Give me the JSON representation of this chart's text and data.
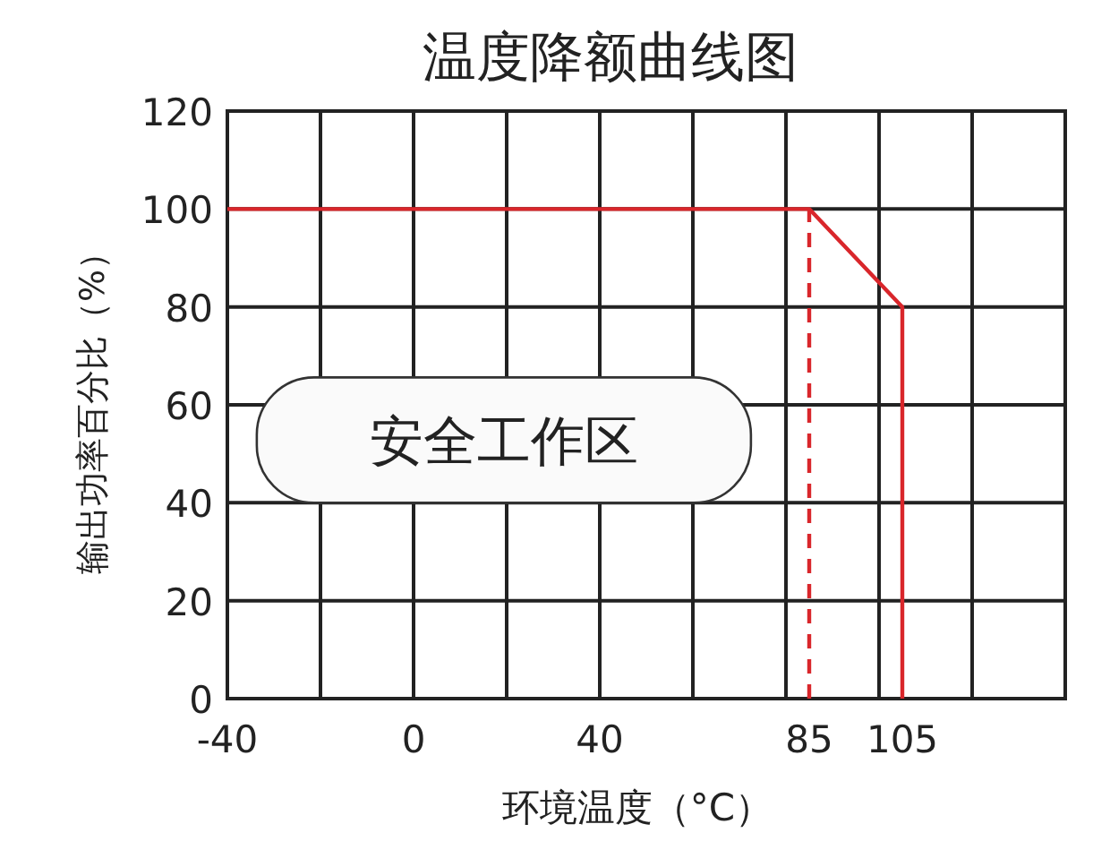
{
  "chart_data": {
    "type": "line",
    "title": "温度降额曲线图",
    "xlabel": "环境温度（°C）",
    "ylabel": "输出功率百分比（%）",
    "xlim": [
      -40,
      140
    ],
    "ylim": [
      0,
      120
    ],
    "xticks": [
      -40,
      {
        "value": -20,
        "label": null
      },
      0,
      {
        "value": 20,
        "label": null
      },
      40,
      {
        "value": 60,
        "label": null
      },
      {
        "value": 80,
        "label": null
      },
      85,
      {
        "value": 100,
        "label": null
      },
      105,
      {
        "value": 120,
        "label": null
      },
      {
        "value": 140,
        "label": null
      }
    ],
    "yticks": [
      0,
      20,
      40,
      60,
      80,
      100,
      120
    ],
    "grid": true,
    "series": [
      {
        "color": "#d9262b",
        "line_style": "solid",
        "x": [
          -40,
          85,
          105,
          105
        ],
        "values": [
          100,
          100,
          80,
          0
        ]
      },
      {
        "color": "#d9262b",
        "line_style": "dashed",
        "x": [
          85,
          85
        ],
        "values": [
          0,
          100
        ]
      }
    ],
    "annotations": [
      "安全工作区"
    ]
  }
}
